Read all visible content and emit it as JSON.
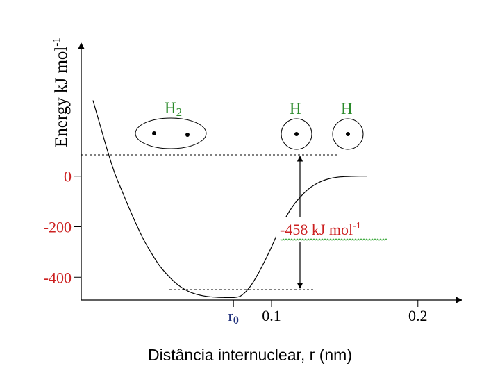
{
  "chart_data": {
    "type": "line",
    "xlabel": "Distância internuclear, r (nm)",
    "ylabel": "Energy  kJ mol",
    "ylabel_sup": "-1",
    "xticks": [
      {
        "value": 0.074,
        "label": "r",
        "sub": "0"
      },
      {
        "value": 0.1,
        "label": "0.1"
      },
      {
        "value": 0.2,
        "label": "0.2"
      }
    ],
    "yticks": [
      {
        "value": 0,
        "label": "0"
      },
      {
        "value": -200,
        "label": "-200"
      },
      {
        "value": -400,
        "label": "-400"
      }
    ],
    "xlim": [
      -0.03,
      0.23
    ],
    "ylim": [
      -490,
      527
    ],
    "series": [
      {
        "x": [
          -0.022,
          -0.017,
          -0.012,
          -0.007,
          -0.002,
          0.003,
          0.008,
          0.013,
          0.018,
          0.023,
          0.028,
          0.033,
          0.038,
          0.043,
          0.048,
          0.053,
          0.058,
          0.063,
          0.068,
          0.071,
          0.074,
          0.077,
          0.08,
          0.085,
          0.09,
          0.095,
          0.1,
          0.105,
          0.11,
          0.115,
          0.12,
          0.125,
          0.13,
          0.135,
          0.14,
          0.145,
          0.15,
          0.155,
          0.16,
          0.165
        ],
        "y": [
          300,
          200,
          100,
          10,
          -60,
          -130,
          -195,
          -255,
          -305,
          -350,
          -385,
          -415,
          -438,
          -455,
          -466,
          -473,
          -477,
          -479,
          -480,
          -480,
          -480,
          -478,
          -470,
          -440,
          -395,
          -340,
          -280,
          -215,
          -160,
          -115,
          -80,
          -52,
          -32,
          -18,
          -9,
          -4,
          -1.5,
          -0.5,
          0,
          0
        ]
      }
    ],
    "annotations": {
      "energy_label": "-458 kJ mol",
      "energy_label_sup": "-1",
      "molecule_label": "H",
      "molecule_sub": "2",
      "atom_labels": [
        "H",
        "H"
      ]
    },
    "colors": {
      "tick_red": "#cc2020",
      "atom_green": "#2a8a2a",
      "r0_blue": "#1f2f7a",
      "annotation_red": "#cc2020",
      "squiggle_green": "#3aa83a"
    }
  }
}
